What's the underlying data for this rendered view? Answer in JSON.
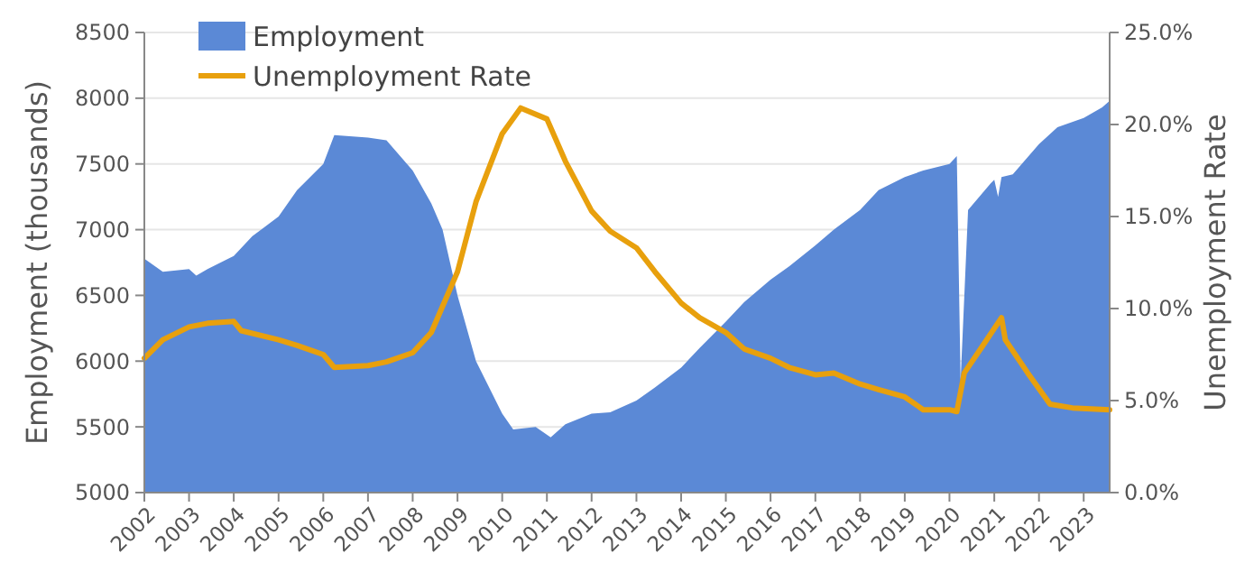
{
  "chart_data": {
    "type": "area",
    "ylabel": "Employment (thousands)",
    "y2label": "Unemployment Rate",
    "xlim": [
      "2002-01",
      "2023-08"
    ],
    "xticks": [
      {
        "value": "2002-01",
        "label": "2002"
      },
      {
        "value": "2003-01",
        "label": "2003"
      },
      {
        "value": "2004-01",
        "label": "2004"
      },
      {
        "value": "2005-01",
        "label": "2005"
      },
      {
        "value": "2006-01",
        "label": "2006"
      },
      {
        "value": "2007-01",
        "label": "2007"
      },
      {
        "value": "2008-01",
        "label": "2008"
      },
      {
        "value": "2009-01",
        "label": "2009"
      },
      {
        "value": "2010-01",
        "label": "2010"
      },
      {
        "value": "2011-01",
        "label": "2011"
      },
      {
        "value": "2012-01",
        "label": "2012"
      },
      {
        "value": "2013-01",
        "label": "2013"
      },
      {
        "value": "2014-01",
        "label": "2014"
      },
      {
        "value": "2015-01",
        "label": "2015"
      },
      {
        "value": "2016-01",
        "label": "2016"
      },
      {
        "value": "2017-01",
        "label": "2017"
      },
      {
        "value": "2018-01",
        "label": "2018"
      },
      {
        "value": "2019-01",
        "label": "2019"
      },
      {
        "value": "2020-01",
        "label": "2020"
      },
      {
        "value": "2021-01",
        "label": "2021"
      },
      {
        "value": "2022-01",
        "label": "2022"
      },
      {
        "value": "2023-01",
        "label": "2023"
      }
    ],
    "ylim": [
      5000,
      8500
    ],
    "yticks": [
      5000,
      5500,
      6000,
      6500,
      7000,
      7500,
      8000,
      8500
    ],
    "y2lim": [
      0,
      25
    ],
    "y2ticks": [
      {
        "value": 0,
        "label": "0.0%"
      },
      {
        "value": 5,
        "label": "5.0%"
      },
      {
        "value": 10,
        "label": "10.0%"
      },
      {
        "value": 15,
        "label": "15.0%"
      },
      {
        "value": 20,
        "label": "20.0%"
      },
      {
        "value": 25,
        "label": "25.0%"
      }
    ],
    "grid": "y",
    "legend": "top left",
    "series": [
      {
        "name": "Employment",
        "color": "#5b89d6",
        "x": [
          "2002-01",
          "2002-06",
          "2003-01",
          "2003-03",
          "2003-06",
          "2004-01",
          "2004-06",
          "2005-01",
          "2005-06",
          "2006-01",
          "2006-04",
          "2007-01",
          "2007-06",
          "2008-01",
          "2008-06",
          "2008-09",
          "2009-01",
          "2009-06",
          "2010-01",
          "2010-04",
          "2010-10",
          "2011-02",
          "2011-06",
          "2012-01",
          "2012-06",
          "2013-01",
          "2013-06",
          "2014-01",
          "2014-06",
          "2015-01",
          "2015-06",
          "2016-01",
          "2016-06",
          "2017-01",
          "2017-06",
          "2018-01",
          "2018-06",
          "2019-01",
          "2019-06",
          "2020-01",
          "2020-03",
          "2020-04",
          "2020-06",
          "2020-12",
          "2021-01",
          "2021-02",
          "2021-03",
          "2021-06",
          "2022-01",
          "2022-06",
          "2023-01",
          "2023-06",
          "2023-08"
        ],
        "values": [
          6780,
          6680,
          6700,
          6650,
          6700,
          6800,
          6950,
          7100,
          7300,
          7500,
          7720,
          7700,
          7680,
          7450,
          7200,
          7000,
          6500,
          6000,
          5600,
          5480,
          5500,
          5420,
          5520,
          5600,
          5610,
          5700,
          5800,
          5950,
          6100,
          6300,
          6450,
          6620,
          6720,
          6880,
          7000,
          7150,
          7300,
          7400,
          7450,
          7500,
          7560,
          5850,
          7150,
          7350,
          7380,
          7250,
          7400,
          7420,
          7650,
          7780,
          7850,
          7930,
          7980
        ]
      },
      {
        "name": "Unemployment Rate",
        "type": "line",
        "axis": "y2",
        "color": "#e8a00d",
        "x": [
          "2002-01",
          "2002-06",
          "2003-01",
          "2003-06",
          "2004-01",
          "2004-03",
          "2005-01",
          "2005-06",
          "2006-01",
          "2006-04",
          "2007-01",
          "2007-06",
          "2008-01",
          "2008-06",
          "2009-01",
          "2009-06",
          "2010-01",
          "2010-06",
          "2011-01",
          "2011-06",
          "2012-01",
          "2012-06",
          "2013-01",
          "2013-06",
          "2014-01",
          "2014-06",
          "2015-01",
          "2015-06",
          "2016-01",
          "2016-06",
          "2017-01",
          "2017-06",
          "2018-01",
          "2018-06",
          "2019-01",
          "2019-06",
          "2020-01",
          "2020-03",
          "2020-05",
          "2020-10",
          "2021-03",
          "2021-04",
          "2021-10",
          "2022-04",
          "2022-10",
          "2023-08"
        ],
        "values": [
          7.3,
          8.3,
          9.0,
          9.2,
          9.3,
          8.8,
          8.3,
          8.0,
          7.5,
          6.8,
          6.9,
          7.1,
          7.6,
          8.7,
          12.0,
          15.8,
          19.5,
          20.9,
          20.3,
          18.0,
          15.3,
          14.2,
          13.3,
          12.0,
          10.3,
          9.5,
          8.7,
          7.8,
          7.3,
          6.8,
          6.4,
          6.5,
          5.9,
          5.6,
          5.2,
          4.5,
          4.5,
          4.4,
          6.5,
          8.0,
          9.5,
          8.3,
          6.5,
          4.8,
          4.6,
          4.5
        ]
      }
    ]
  }
}
